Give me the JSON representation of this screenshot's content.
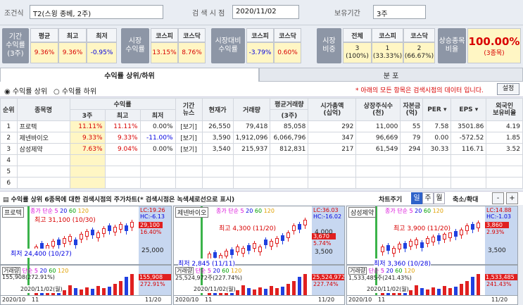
{
  "search": {
    "cond_label": "조건식",
    "cond_value": "T2(스윙 종베, 2주)",
    "date_label": "검 색 시 점",
    "date_value": "2020/11/02",
    "hold_label": "보유기간",
    "hold_value": "3주"
  },
  "period_return": {
    "side": "기간\n수익률\n(3주)",
    "heads": [
      "평균",
      "최고",
      "최저"
    ],
    "values": [
      "9.36%",
      "9.36%",
      "-0.95%"
    ]
  },
  "market_return": {
    "side": "시장\n수익률",
    "heads": [
      "코스피",
      "코스닥"
    ],
    "values": [
      "13.15%",
      "8.76%"
    ]
  },
  "relative_return": {
    "side": "시장대비\n수익률",
    "heads": [
      "코스피",
      "코스닥"
    ],
    "values": [
      "-3.79%",
      "0.60%"
    ]
  },
  "ratio": {
    "side": "시장\n비중",
    "heads": [
      "전체",
      "코스피",
      "코스닥"
    ],
    "values": [
      "3\n(100%)",
      "1\n(33.33%)",
      "2\n(66.67%)"
    ]
  },
  "up_ratio": {
    "label": "상승종목\n비율",
    "value": "100.00%",
    "sub": "(3종목)"
  },
  "tabs": {
    "t1": "수익률 상위/하위",
    "t2": "분 포"
  },
  "options": {
    "top": "수익률 상위",
    "bottom": "수익률 하위",
    "notice": "* 아래의 모든 항목은 검색시점의 데이터 입니다.",
    "settings": "설정"
  },
  "table": {
    "h": {
      "rank": "순위",
      "name": "종목명",
      "ret": "수익률",
      "ret3": "3주",
      "max": "최고",
      "min": "최저",
      "news": "기간\n뉴스",
      "price": "현재가",
      "vol": "거래량",
      "avgvol": "평균거래량",
      "avgvol2": "(3주)",
      "cap": "시가총액\n(십억)",
      "shares": "상장주식수\n(천)",
      "capital": "자본금\n(억)",
      "per": "PER",
      "eps": "EPS",
      "foreign": "외국인\n보유비율"
    },
    "rows": [
      {
        "no": "1",
        "name": "프로텍",
        "r": "11.11%",
        "mx": "11.11%",
        "mn": "0.00%",
        "news": "[보기]",
        "price": "26,550",
        "vol": "79,418",
        "avg": "85,058",
        "cap": "292",
        "sh": "11,000",
        "capi": "55",
        "per": "7.58",
        "eps": "3501.86",
        "fr": "4.19"
      },
      {
        "no": "2",
        "name": "제넨바이오",
        "r": "9.33%",
        "mx": "9.33%",
        "mn": "-11.00%",
        "news": "[보기]",
        "price": "3,590",
        "vol": "1,912,096",
        "avg": "6,066,796",
        "cap": "347",
        "sh": "96,669",
        "capi": "79",
        "per": "0.00",
        "eps": "-572.52",
        "fr": "1.85"
      },
      {
        "no": "3",
        "name": "삼성제약",
        "r": "7.63%",
        "mx": "9.04%",
        "mn": "0.00%",
        "news": "[보기]",
        "price": "3,540",
        "vol": "215,937",
        "avg": "812,831",
        "cap": "217",
        "sh": "61,549",
        "capi": "294",
        "per": "30.33",
        "eps": "116.71",
        "fr": "3.52"
      },
      {
        "no": "4"
      },
      {
        "no": "5"
      },
      {
        "no": "6"
      }
    ]
  },
  "chartbar": {
    "title": "수익률 상위 6종목에 대한 검색시점의 주가차트(* 검색시점은 녹색세로선으로 표시)",
    "period": "차트주기",
    "d": "일",
    "w": "주",
    "m": "월",
    "zoom": "축소/확대",
    "minus": "-",
    "plus": "+"
  },
  "charts": [
    {
      "name": "프로텍",
      "ma": "종가 단순 5",
      "m2": "20",
      "m3": "60",
      "m4": "120",
      "lc": "LC:19.26",
      "hc": "HC:-6.13",
      "hi": "최고 31,100 (10/30)",
      "lo": "최저 24,400 (10/27)",
      "tag": "29,100",
      "tagp": "16.40%",
      "y": "25,000",
      "vlbl": "거래량",
      "vma": "단순 5",
      "vol": "155,908(272.91%)",
      "vtag": "155,908",
      "vtagp": "272.91%",
      "dt": "2020/11/02(월)",
      "x1": "2020/10",
      "x2": "11",
      "x3": "11/20"
    },
    {
      "name": "제넨바이오",
      "ma": "종가 단순 5",
      "m2": "20",
      "m3": "60",
      "m4": "120",
      "lc": "LC:36.03",
      "hc": "HC:-16.02",
      "hi": "최고 4,300 (11/20)",
      "lo": "최저 2,845 (11/11)",
      "tag": "3,670",
      "tagp": "5.74%",
      "y": "4,000",
      "y2": "3,500",
      "vlbl": "거래량",
      "vma": "단순 5",
      "vol": "25,524,972주(227.74%)",
      "vtag": "25,524,972",
      "vtagp": "227.74%",
      "dt": "2020/11/02(월)",
      "x1": "2020/10",
      "x2": "11",
      "x3": "11/20"
    },
    {
      "name": "삼성제약",
      "ma": "종가 단순 5",
      "m2": "20",
      "m3": "60",
      "m4": "120",
      "lc": "LC:14.88",
      "hc": "HC:-1.03",
      "hi": "최고 3,900 (11/20)",
      "lo": "최저 3,360 (10/28)",
      "tag": "3,860",
      "tagp": "2.93%",
      "y": "3,500",
      "vlbl": "거래량",
      "vma": "단순 5",
      "vol": "1,533,485주(241.43%)",
      "vtag": "1,533,485",
      "vtagp": "241.43%",
      "dt": "2020/11/02(월)",
      "x1": "2020/10",
      "x2": "11",
      "x3": "11/20"
    }
  ]
}
